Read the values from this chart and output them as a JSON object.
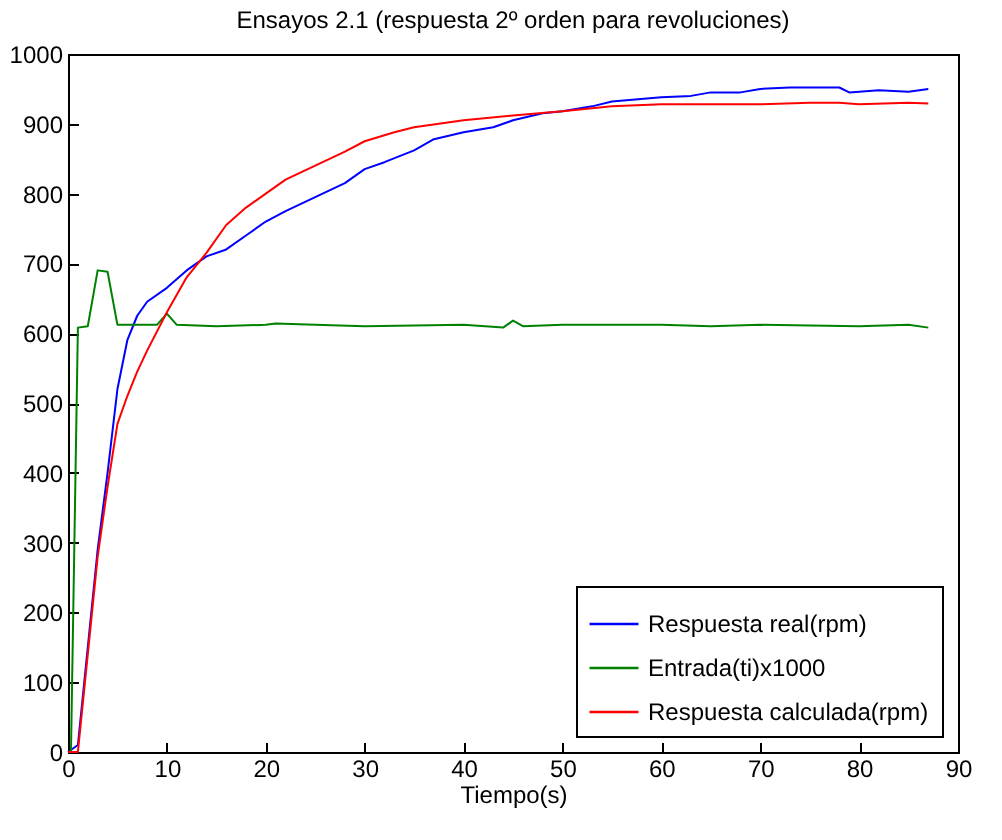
{
  "chart_data": {
    "type": "line",
    "title": "Ensayos 2.1 (respuesta 2º orden para revoluciones)",
    "xlabel": "Tiempo(s)",
    "xlim": [
      0,
      90
    ],
    "xticks": [
      0,
      10,
      20,
      30,
      40,
      50,
      60,
      70,
      80,
      90
    ],
    "ylim": [
      0,
      1000
    ],
    "yticks": [
      0,
      100,
      200,
      300,
      400,
      500,
      600,
      700,
      800,
      900,
      1000
    ],
    "grid": false,
    "legend": "bottom right",
    "series": [
      {
        "name": "Respuesta real(rpm)",
        "color": "#0000ff",
        "x": [
          0,
          1,
          2,
          3,
          4,
          5,
          6,
          7,
          8,
          10,
          12,
          14,
          16,
          18,
          20,
          22,
          25,
          28,
          30,
          32,
          35,
          37,
          40,
          43,
          45,
          48,
          50,
          53,
          55,
          60,
          63,
          65,
          68,
          70,
          73,
          78,
          79,
          82,
          85,
          87
        ],
        "values": [
          0,
          10,
          150,
          290,
          400,
          520,
          590,
          625,
          645,
          665,
          690,
          710,
          720,
          740,
          760,
          775,
          795,
          815,
          835,
          845,
          862,
          878,
          888,
          895,
          905,
          915,
          918,
          925,
          932,
          938,
          940,
          945,
          945,
          950,
          952,
          952,
          945,
          948,
          946,
          950
        ]
      },
      {
        "name": "Entrada(ti)x1000",
        "color": "#008000",
        "x": [
          0,
          0.3,
          1,
          2,
          3,
          4,
          5,
          9,
          10,
          11,
          15,
          20,
          21,
          25,
          30,
          40,
          44,
          45,
          46,
          50,
          60,
          65,
          70,
          80,
          85,
          87
        ],
        "values": [
          0,
          0,
          608,
          610,
          690,
          688,
          612,
          612,
          628,
          612,
          610,
          612,
          614,
          612,
          610,
          612,
          608,
          618,
          610,
          612,
          612,
          610,
          612,
          610,
          612,
          608
        ]
      },
      {
        "name": "Respuesta calculada(rpm)",
        "color": "#ff0000",
        "x": [
          0,
          1,
          2,
          3,
          4,
          5,
          6,
          7,
          8,
          10,
          12,
          14,
          16,
          18,
          20,
          22,
          25,
          28,
          30,
          33,
          35,
          40,
          45,
          50,
          55,
          60,
          70,
          75,
          78,
          80,
          85,
          87
        ],
        "values": [
          0,
          0,
          140,
          280,
          380,
          470,
          510,
          545,
          575,
          630,
          680,
          715,
          755,
          780,
          800,
          820,
          840,
          860,
          875,
          888,
          895,
          905,
          912,
          918,
          925,
          928,
          928,
          930,
          930,
          928,
          930,
          929
        ]
      }
    ]
  }
}
